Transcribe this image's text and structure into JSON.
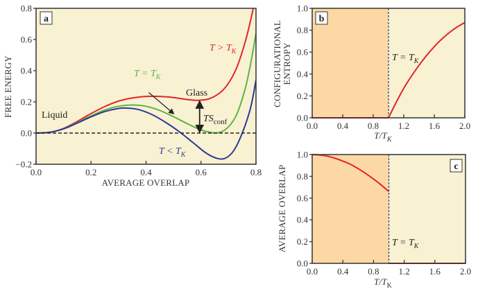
{
  "colors": {
    "panel_bg": "#f8f1d2",
    "glass_region": "#fcd9a4",
    "red": "#e3242b",
    "green": "#5bb345",
    "blue": "#2b3a94",
    "axis": "#333333",
    "kauzmann_line": "#2b3a94"
  },
  "chart_data": [
    {
      "panel": "a",
      "type": "line",
      "panel_label": "a",
      "xlabel": "AVERAGE OVERLAP",
      "ylabel": "FREE ENERGY",
      "xlim": [
        0.0,
        0.8
      ],
      "ylim": [
        -0.2,
        0.8
      ],
      "xticks": [
        "0.0",
        "0.2",
        "0.4",
        "0.6",
        "0.8"
      ],
      "yticks": [
        "−0.2",
        "0.0",
        "0.2",
        "0.4",
        "0.6",
        "0.8"
      ],
      "reference_line": {
        "y": 0.0,
        "style": "dashed"
      },
      "series": [
        {
          "name": "T > T_K",
          "label_main": "T > T",
          "label_sub": "K",
          "color": "red",
          "points": [
            [
              0,
              0
            ],
            [
              0.05,
              0.005
            ],
            [
              0.1,
              0.03
            ],
            [
              0.15,
              0.075
            ],
            [
              0.2,
              0.125
            ],
            [
              0.25,
              0.17
            ],
            [
              0.3,
              0.205
            ],
            [
              0.35,
              0.225
            ],
            [
              0.4,
              0.235
            ],
            [
              0.45,
              0.235
            ],
            [
              0.5,
              0.228
            ],
            [
              0.55,
              0.215
            ],
            [
              0.59,
              0.21
            ],
            [
              0.63,
              0.22
            ],
            [
              0.67,
              0.26
            ],
            [
              0.7,
              0.32
            ],
            [
              0.73,
              0.42
            ],
            [
              0.76,
              0.58
            ],
            [
              0.78,
              0.72
            ],
            [
              0.79,
              0.8
            ]
          ]
        },
        {
          "name": "T = T_K",
          "label_main": "T = T",
          "label_sub": "K",
          "color": "green",
          "points": [
            [
              0,
              0
            ],
            [
              0.05,
              0.005
            ],
            [
              0.1,
              0.028
            ],
            [
              0.15,
              0.068
            ],
            [
              0.2,
              0.11
            ],
            [
              0.25,
              0.148
            ],
            [
              0.3,
              0.172
            ],
            [
              0.35,
              0.18
            ],
            [
              0.4,
              0.172
            ],
            [
              0.45,
              0.145
            ],
            [
              0.5,
              0.105
            ],
            [
              0.55,
              0.06
            ],
            [
              0.6,
              0.02
            ],
            [
              0.64,
              0.003
            ],
            [
              0.67,
              0.005
            ],
            [
              0.7,
              0.04
            ],
            [
              0.73,
              0.12
            ],
            [
              0.76,
              0.28
            ],
            [
              0.78,
              0.44
            ],
            [
              0.8,
              0.64
            ]
          ]
        },
        {
          "name": "T < T_K",
          "label_main": "T < T",
          "label_sub": "K",
          "color": "blue",
          "points": [
            [
              0,
              0
            ],
            [
              0.05,
              0.005
            ],
            [
              0.1,
              0.027
            ],
            [
              0.15,
              0.064
            ],
            [
              0.2,
              0.104
            ],
            [
              0.25,
              0.138
            ],
            [
              0.3,
              0.158
            ],
            [
              0.33,
              0.16
            ],
            [
              0.37,
              0.152
            ],
            [
              0.42,
              0.12
            ],
            [
              0.47,
              0.07
            ],
            [
              0.52,
              0.01
            ],
            [
              0.57,
              -0.06
            ],
            [
              0.62,
              -0.13
            ],
            [
              0.66,
              -0.163
            ],
            [
              0.69,
              -0.16
            ],
            [
              0.72,
              -0.11
            ],
            [
              0.75,
              0
            ],
            [
              0.78,
              0.16
            ],
            [
              0.8,
              0.34
            ]
          ]
        }
      ],
      "annotations": {
        "liquid": "Liquid",
        "glass": "Glass",
        "ts_conf_main": "TS",
        "ts_conf_sub": "conf",
        "ts_conf_arrow": {
          "x": 0.595,
          "y_from": 0.21,
          "y_to": 0.0
        },
        "tk_pointer_arrow": {
          "from": [
            0.41,
            0.26
          ],
          "to": [
            0.5,
            0.125
          ]
        }
      }
    },
    {
      "panel": "b",
      "type": "line",
      "panel_label": "b",
      "xlabel_main": "T/T",
      "xlabel_sub": "K",
      "ylabel_line1": "CONFIGURATIONAL",
      "ylabel_line2": "ENTROPY",
      "xlim": [
        0.0,
        2.0
      ],
      "ylim": [
        0.0,
        1.0
      ],
      "xticks": [
        "0.0",
        "0.4",
        "0.8",
        "1.2",
        "1.6",
        "2.0"
      ],
      "yticks": [
        "0.0",
        "0.2",
        "0.4",
        "0.6",
        "0.8",
        "1.0"
      ],
      "shaded_region": [
        0.0,
        1.0
      ],
      "vline": {
        "x": 1.0,
        "label_main": "T = T",
        "label_sub": "K"
      },
      "series": [
        {
          "name": "S_conf",
          "color": "red",
          "points": [
            [
              0,
              0
            ],
            [
              1.0,
              0
            ],
            [
              1.0,
              0
            ],
            [
              1.1,
              0.14
            ],
            [
              1.2,
              0.27
            ],
            [
              1.3,
              0.38
            ],
            [
              1.4,
              0.48
            ],
            [
              1.5,
              0.57
            ],
            [
              1.6,
              0.65
            ],
            [
              1.7,
              0.72
            ],
            [
              1.8,
              0.78
            ],
            [
              1.9,
              0.83
            ],
            [
              2.0,
              0.87
            ]
          ]
        }
      ]
    },
    {
      "panel": "c",
      "type": "line",
      "panel_label": "c",
      "xlabel_main": "T/T",
      "xlabel_sub": "K",
      "ylabel": "AVERAGE OVERLAP",
      "xlim": [
        0.0,
        2.0
      ],
      "ylim": [
        0.0,
        1.0
      ],
      "xticks": [
        "0.0",
        "0.4",
        "0.8",
        "1.2",
        "1.6",
        "2.0"
      ],
      "yticks": [
        "0.0",
        "0.2",
        "0.4",
        "0.6",
        "0.8",
        "1.0"
      ],
      "shaded_region": [
        0.0,
        1.0
      ],
      "vline": {
        "x": 1.0,
        "label_main": "T = T",
        "label_sub": "K"
      },
      "series": [
        {
          "name": "overlap_glass",
          "color": "red",
          "points": [
            [
              0,
              1.0
            ],
            [
              0.1,
              0.995
            ],
            [
              0.2,
              0.985
            ],
            [
              0.3,
              0.965
            ],
            [
              0.4,
              0.94
            ],
            [
              0.5,
              0.91
            ],
            [
              0.6,
              0.87
            ],
            [
              0.7,
              0.825
            ],
            [
              0.8,
              0.775
            ],
            [
              0.9,
              0.72
            ],
            [
              1.0,
              0.66
            ]
          ]
        },
        {
          "name": "overlap_liquid",
          "color": "red",
          "points": [
            [
              1.0,
              0.0
            ],
            [
              2.0,
              0.0
            ]
          ]
        }
      ]
    }
  ]
}
